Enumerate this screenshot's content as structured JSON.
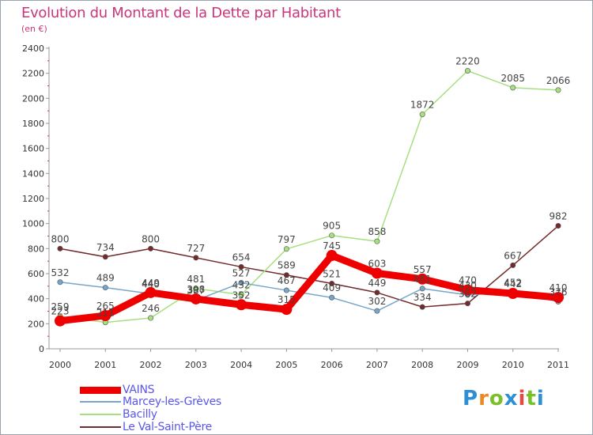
{
  "header": {
    "title": "Evolution du Montant de la Dette par Habitant",
    "unit": "(en €)"
  },
  "logo": {
    "text": "Proxiti",
    "colors": [
      "#2d8fd6",
      "#e98a24",
      "#7bbf2a",
      "#2d8fd6",
      "#e24b45",
      "#7bbf2a",
      "#2d8fd6"
    ]
  },
  "chart_data": {
    "type": "line",
    "title": "Evolution du Montant de la Dette par Habitant",
    "ylabel": "(en €)",
    "xlabel": "",
    "x": [
      "2000",
      "2001",
      "2002",
      "2003",
      "2004",
      "2005",
      "2006",
      "2007",
      "2008",
      "2009",
      "2010",
      "2011"
    ],
    "ylim": [
      0,
      2400
    ],
    "yticks": [
      0,
      200,
      400,
      600,
      800,
      1000,
      1200,
      1400,
      1600,
      1800,
      2000,
      2200,
      2400
    ],
    "grid": false,
    "legend_position": "bottom-left",
    "series": [
      {
        "name": "Le Val-Saint-Père",
        "color": "#722a2a",
        "values": [
          800,
          734,
          800,
          727,
          654,
          589,
          521,
          449,
          334,
          362,
          667,
          982
        ]
      },
      {
        "name": "Bacilly",
        "color": "#a6e07f",
        "values": [
          259,
          211,
          246,
          481,
          432,
          797,
          905,
          858,
          1872,
          2220,
          2085,
          2066
        ]
      },
      {
        "name": "Marcey-les-Grèves",
        "color": "#77a6c8",
        "values": [
          532,
          489,
          440,
          387,
          527,
          467,
          409,
          302,
          481,
          430,
          452,
          376
        ]
      },
      {
        "name": "VAINS",
        "color": "#ee0000",
        "values": [
          223,
          265,
          449,
          398,
          352,
          315,
          745,
          603,
          557,
          470,
          442,
          410
        ]
      }
    ],
    "legend_order": [
      "VAINS",
      "Marcey-les-Grèves",
      "Bacilly",
      "Le Val-Saint-Père"
    ]
  }
}
